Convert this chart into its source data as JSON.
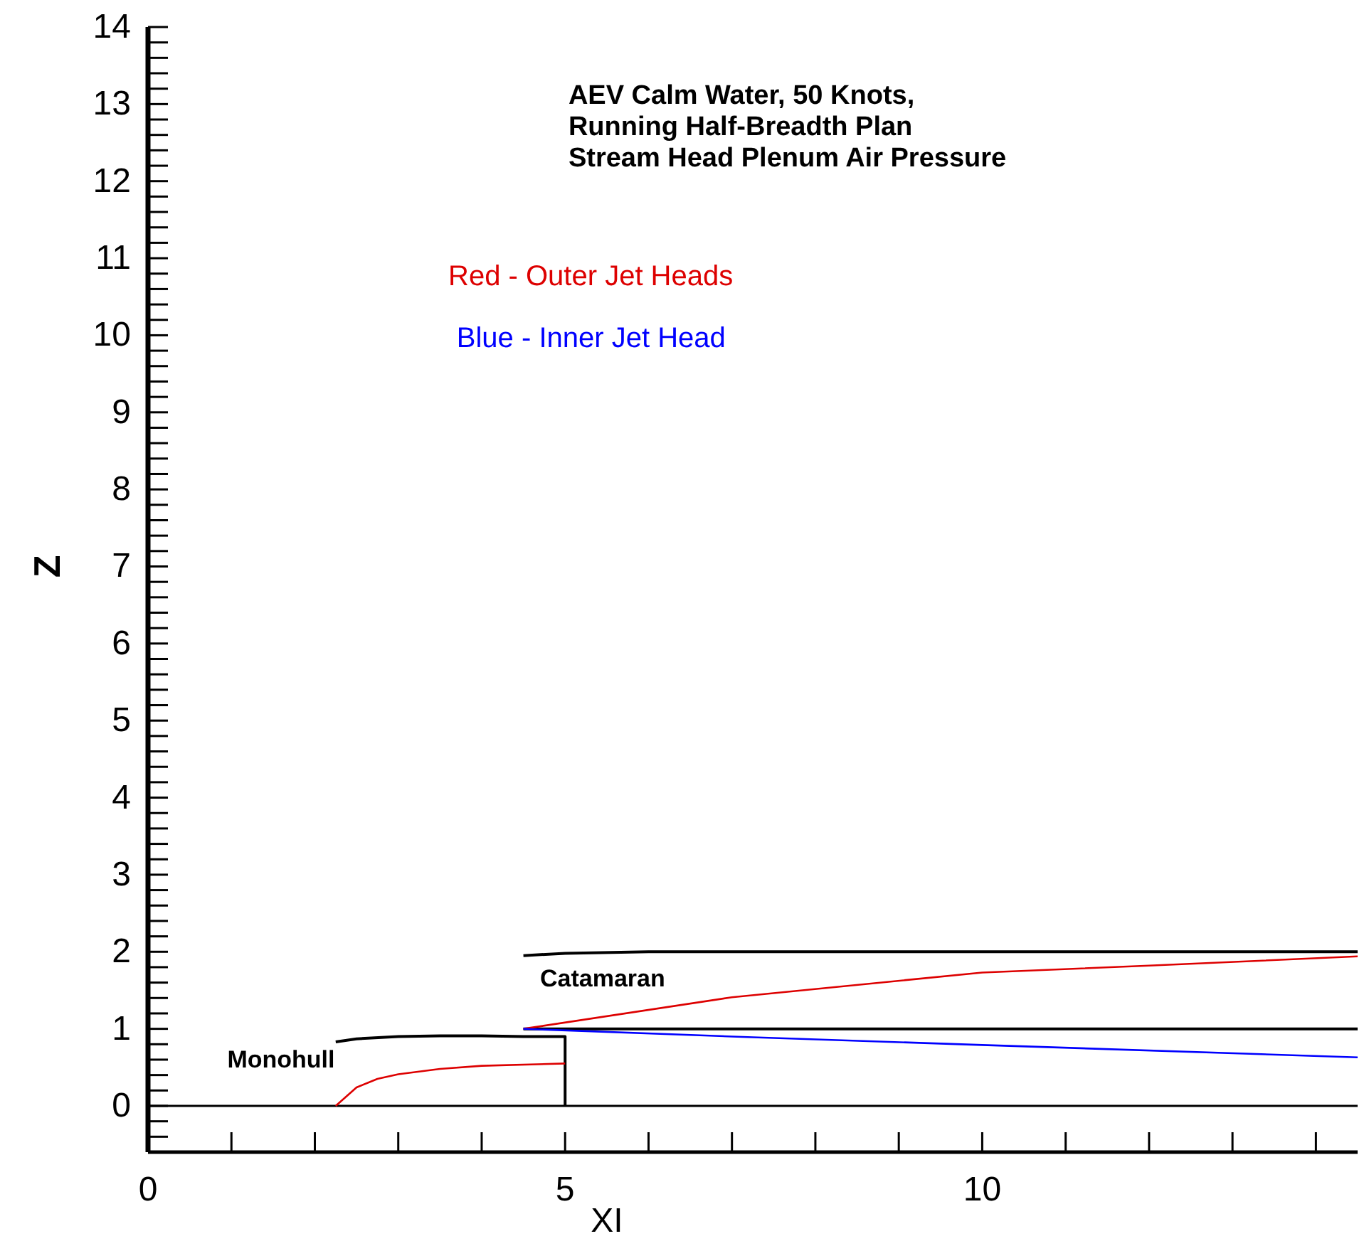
{
  "chart_data": {
    "type": "line",
    "title": "AEV Calm Water, 50 Knots,\nRunning Half-Breadth Plan\nStream Head Plenum Air Pressure",
    "xlabel": "XI",
    "ylabel": "Z",
    "series": [
      {
        "name": "Monohull",
        "color": "#000000",
        "x": [
          2.25,
          2.5,
          3,
          3.5,
          4,
          4.5,
          5,
          5
        ],
        "values": [
          0.83,
          0.87,
          0.9,
          0.91,
          0.91,
          0.9,
          0.9,
          0
        ]
      },
      {
        "name": "Catamaran",
        "color": "#000000",
        "x": [
          4.5,
          5,
          6,
          8,
          10,
          14.5
        ],
        "values": [
          1.95,
          1.98,
          2.0,
          2.0,
          2.0,
          2.0
        ]
      },
      {
        "color": "#000000",
        "x": [
          4.5,
          14.5
        ],
        "values": [
          1.0,
          1.0
        ]
      },
      {
        "name": "Red - Outer Jet Heads",
        "color": "#dd0000",
        "x": [
          4.5,
          7,
          10,
          12,
          14.5
        ],
        "values": [
          1.0,
          1.41,
          1.73,
          1.82,
          1.94
        ]
      },
      {
        "color": "#dd0000",
        "x": [
          2.25,
          2.5,
          2.75,
          3,
          3.5,
          4,
          5
        ],
        "values": [
          0,
          0.24,
          0.35,
          0.41,
          0.48,
          0.52,
          0.55
        ]
      },
      {
        "name": "Blue - Inner Jet Head",
        "color": "#0000ff",
        "x": [
          4.5,
          7,
          10,
          14.5
        ],
        "values": [
          1.0,
          0.9,
          0.79,
          0.63
        ]
      }
    ],
    "ref_lines": [
      {
        "axis": "y",
        "value": 0,
        "color": "#000000"
      }
    ],
    "xlim": [
      0,
      14.5
    ],
    "ylim": [
      -0.6,
      14
    ],
    "xticks": [
      0,
      {
        "value": 1,
        "label": null
      },
      {
        "value": 2,
        "label": null
      },
      {
        "value": 3,
        "label": null
      },
      {
        "value": 4,
        "label": null
      },
      5,
      {
        "value": 6,
        "label": null
      },
      {
        "value": 7,
        "label": null
      },
      {
        "value": 8,
        "label": null
      },
      {
        "value": 9,
        "label": null
      },
      10,
      {
        "value": 11,
        "label": null
      },
      {
        "value": 12,
        "label": null
      },
      {
        "value": 13,
        "label": null
      },
      {
        "value": 14,
        "label": null
      }
    ],
    "yticks": [
      {
        "value": -0.4,
        "label": null
      },
      {
        "value": -0.2,
        "label": null
      },
      0,
      {
        "value": 0.2,
        "label": null
      },
      {
        "value": 0.4,
        "label": null
      },
      {
        "value": 0.6,
        "label": null
      },
      {
        "value": 0.8,
        "label": null
      },
      1,
      {
        "value": 1.2,
        "label": null
      },
      {
        "value": 1.4,
        "label": null
      },
      {
        "value": 1.6,
        "label": null
      },
      {
        "value": 1.8,
        "label": null
      },
      2,
      {
        "value": 2.2,
        "label": null
      },
      {
        "value": 2.4,
        "label": null
      },
      {
        "value": 2.6,
        "label": null
      },
      {
        "value": 2.8,
        "label": null
      },
      3,
      {
        "value": 3.2,
        "label": null
      },
      {
        "value": 3.4,
        "label": null
      },
      {
        "value": 3.6,
        "label": null
      },
      {
        "value": 3.8,
        "label": null
      },
      4,
      {
        "value": 4.2,
        "label": null
      },
      {
        "value": 4.4,
        "label": null
      },
      {
        "value": 4.6,
        "label": null
      },
      {
        "value": 4.8,
        "label": null
      },
      5,
      {
        "value": 5.2,
        "label": null
      },
      {
        "value": 5.4,
        "label": null
      },
      {
        "value": 5.6,
        "label": null
      },
      {
        "value": 5.8,
        "label": null
      },
      6,
      {
        "value": 6.2,
        "label": null
      },
      {
        "value": 6.4,
        "label": null
      },
      {
        "value": 6.6,
        "label": null
      },
      {
        "value": 6.8,
        "label": null
      },
      7,
      {
        "value": 7.2,
        "label": null
      },
      {
        "value": 7.4,
        "label": null
      },
      {
        "value": 7.6,
        "label": null
      },
      {
        "value": 7.8,
        "label": null
      },
      8,
      {
        "value": 8.2,
        "label": null
      },
      {
        "value": 8.4,
        "label": null
      },
      {
        "value": 8.6,
        "label": null
      },
      {
        "value": 8.8,
        "label": null
      },
      9,
      {
        "value": 9.2,
        "label": null
      },
      {
        "value": 9.4,
        "label": null
      },
      {
        "value": 9.6,
        "label": null
      },
      {
        "value": 9.8,
        "label": null
      },
      10,
      {
        "value": 10.2,
        "label": null
      },
      {
        "value": 10.4,
        "label": null
      },
      {
        "value": 10.6,
        "label": null
      },
      {
        "value": 10.8,
        "label": null
      },
      11,
      {
        "value": 11.2,
        "label": null
      },
      {
        "value": 11.4,
        "label": null
      },
      {
        "value": 11.6,
        "label": null
      },
      {
        "value": 11.8,
        "label": null
      },
      12,
      {
        "value": 12.2,
        "label": null
      },
      {
        "value": 12.4,
        "label": null
      },
      {
        "value": 12.6,
        "label": null
      },
      {
        "value": 12.8,
        "label": null
      },
      13,
      {
        "value": 13.2,
        "label": null
      },
      {
        "value": 13.4,
        "label": null
      },
      {
        "value": 13.6,
        "label": null
      },
      {
        "value": 13.8,
        "label": null
      },
      14
    ],
    "grid": false,
    "legend": false,
    "marker": "none",
    "line_style": "solid"
  }
}
